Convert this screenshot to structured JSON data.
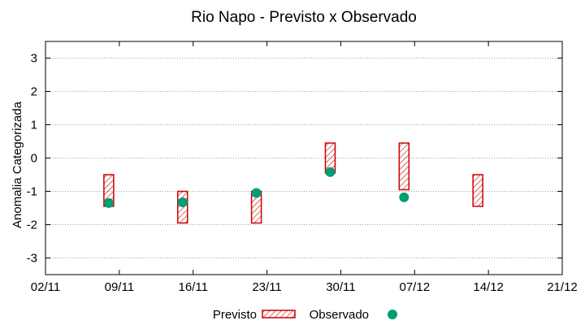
{
  "chart_data": {
    "type": "range-forecast-vs-observed",
    "title": "Rio Napo - Previsto x Observado",
    "ylabel": "Anomalia Categorizada",
    "xlabel": "",
    "x_ticks": [
      {
        "label": "02/11",
        "day": 0
      },
      {
        "label": "09/11",
        "day": 7
      },
      {
        "label": "16/11",
        "day": 14
      },
      {
        "label": "23/11",
        "day": 21
      },
      {
        "label": "30/11",
        "day": 28
      },
      {
        "label": "07/12",
        "day": 35
      },
      {
        "label": "14/12",
        "day": 42
      },
      {
        "label": "21/12",
        "day": 49
      }
    ],
    "xlim_days": [
      0,
      49
    ],
    "y_ticks": [
      -3,
      -2,
      -1,
      0,
      1,
      2,
      3
    ],
    "ylim": [
      -3.5,
      3.5
    ],
    "grid": "horizontal dotted",
    "forecast_series": {
      "name": "Previsto",
      "color": "#cc0000",
      "ranges": [
        {
          "day": 6,
          "low": -1.45,
          "high": -0.5
        },
        {
          "day": 13,
          "low": -1.95,
          "high": -1.0
        },
        {
          "day": 20,
          "low": -1.95,
          "high": -1.0
        },
        {
          "day": 27,
          "low": -0.45,
          "high": 0.45
        },
        {
          "day": 34,
          "low": -0.95,
          "high": 0.45
        },
        {
          "day": 41,
          "low": -1.45,
          "high": -0.5
        }
      ]
    },
    "observed_series": {
      "name": "Observado",
      "color": "#009e73",
      "points": [
        {
          "day": 6,
          "value": -1.35
        },
        {
          "day": 13,
          "value": -1.33
        },
        {
          "day": 20,
          "value": -1.05
        },
        {
          "day": 27,
          "value": -0.42
        },
        {
          "day": 34,
          "value": -1.18
        }
      ]
    },
    "legend": {
      "placement": "bottom-center",
      "previsto_label": "Previsto",
      "observado_label": "Observado"
    }
  }
}
